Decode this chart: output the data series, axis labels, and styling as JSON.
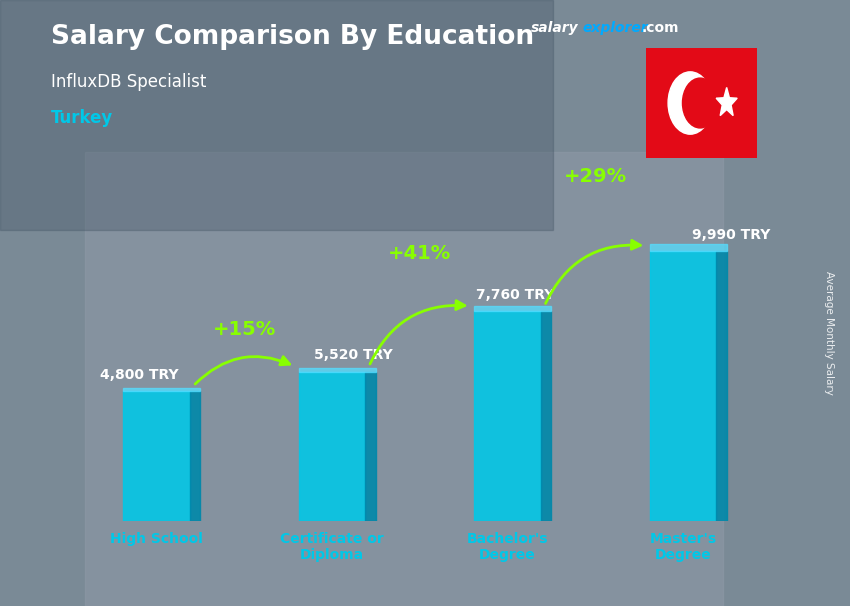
{
  "title_main": "Salary Comparison By Education",
  "title_sub": "InfluxDB Specialist",
  "country": "Turkey",
  "categories": [
    "High School",
    "Certificate or\nDiploma",
    "Bachelor's\nDegree",
    "Master's\nDegree"
  ],
  "values": [
    4800,
    5520,
    7760,
    9990
  ],
  "value_labels": [
    "4,800 TRY",
    "5,520 TRY",
    "7,760 TRY",
    "9,990 TRY"
  ],
  "pct_labels": [
    "+15%",
    "+41%",
    "+29%"
  ],
  "bar_color_main": "#00c8e8",
  "bar_color_side": "#0088aa",
  "bar_color_top": "#55ddff",
  "bg_color": "#8a9aaa",
  "title_color": "#ffffff",
  "subtitle_color": "#ffffff",
  "country_color": "#00c8e8",
  "value_label_color": "#ffffff",
  "pct_color": "#88ff00",
  "xlabel_color": "#00c8e8",
  "right_label": "Average Monthly Salary",
  "site_salary_color": "#ffffff",
  "site_explorer_color": "#00aaff",
  "site_com_color": "#ffffff",
  "flag_bg": "#e30a17",
  "ylim": [
    0,
    13000
  ],
  "val_label_xoff": [
    -0.32,
    -0.1,
    -0.18,
    0.05
  ],
  "val_label_yoff": [
    350,
    350,
    350,
    350
  ]
}
